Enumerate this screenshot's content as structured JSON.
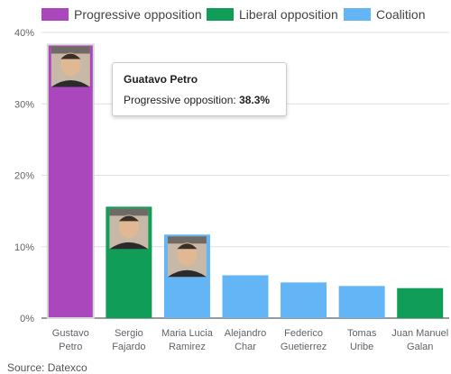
{
  "chart_data": {
    "type": "bar",
    "categories": [
      [
        "Gustavo",
        "Petro"
      ],
      [
        "Sergio",
        "Fajardo"
      ],
      [
        "Maria Lucia",
        "Ramirez"
      ],
      [
        "Alejandro",
        "Char"
      ],
      [
        "Federico",
        "Guetierrez"
      ],
      [
        "Tomas",
        "Uribe"
      ],
      [
        "Juan Manuel",
        "Galan"
      ]
    ],
    "values": [
      38.3,
      15.6,
      11.7,
      6.0,
      5.0,
      4.5,
      4.2
    ],
    "groups": [
      "Progressive opposition",
      "Liberal opposition",
      "Coalition",
      "Coalition",
      "Coalition",
      "Coalition",
      "Liberal opposition"
    ],
    "legend": [
      {
        "name": "Progressive opposition",
        "color": "#ab47bc"
      },
      {
        "name": "Liberal opposition",
        "color": "#0f9d58"
      },
      {
        "name": "Coalition",
        "color": "#64b5f6"
      }
    ],
    "ylim": [
      0,
      40
    ],
    "yticks": [
      0,
      10,
      20,
      30,
      40
    ],
    "ytick_labels": [
      "0%",
      "10%",
      "20%",
      "30%",
      "40%"
    ],
    "grid": true,
    "legend_position": "top",
    "photos": [
      "Gustavo Petro",
      "Sergio Fajardo",
      "Maria Lucia Ramirez"
    ]
  },
  "tooltip": {
    "title": "Guatavo Petro",
    "label": "Progressive opposition:",
    "value": "38.3%"
  },
  "source": "Source: Datexco"
}
